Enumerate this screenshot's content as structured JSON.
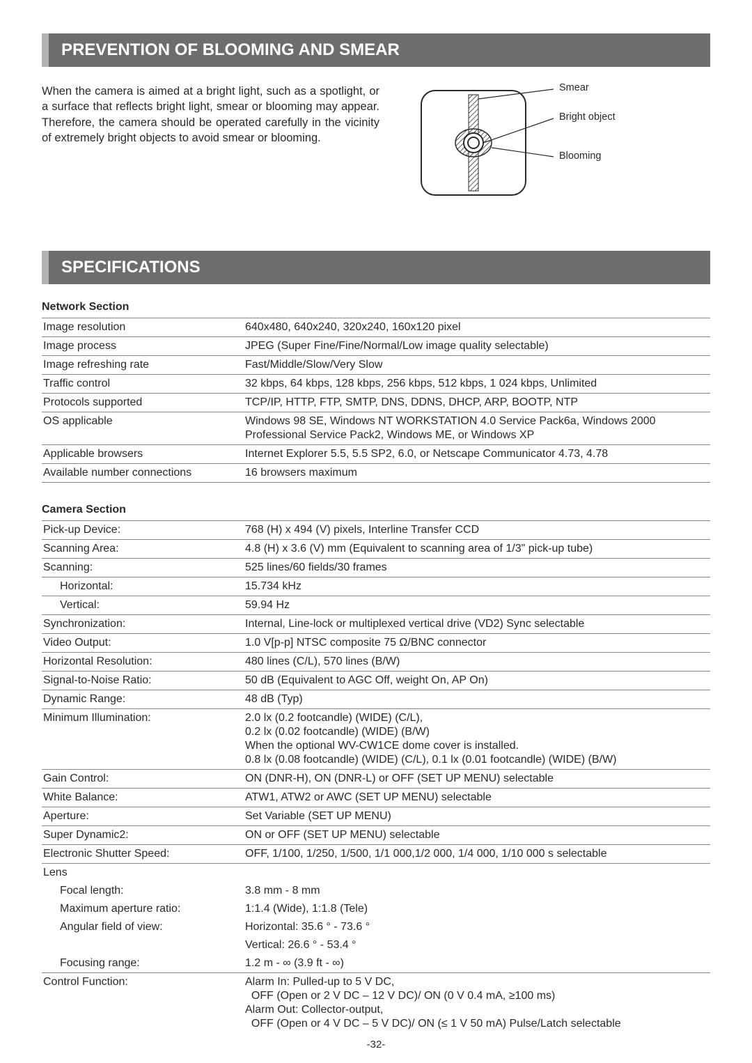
{
  "banner1": "PREVENTION OF BLOOMING AND SMEAR",
  "blooming_paragraph": "When the camera is aimed at a bright light, such as a spotlight, or a surface that reflects bright light, smear or blooming may appear. Therefore, the camera should be operated carefully in the vicinity of extremely bright objects to avoid smear or blooming.",
  "diagram": {
    "label_smear": "Smear",
    "label_bright": "Bright object",
    "label_blooming": "Blooming",
    "colors": {
      "frame": "#2a2a2a",
      "fill": "#ffffff",
      "hatch": "#5a5a5a"
    }
  },
  "banner2": "SPECIFICATIONS",
  "network_header": "Network Section",
  "network_rows": [
    {
      "label": "Image resolution",
      "value": "640x480, 640x240, 320x240, 160x120 pixel"
    },
    {
      "label": "Image process",
      "value": "JPEG (Super Fine/Fine/Normal/Low image quality selectable)"
    },
    {
      "label": "Image refreshing rate",
      "value": "Fast/Middle/Slow/Very Slow"
    },
    {
      "label": "Traffic control",
      "value": "32 kbps, 64 kbps, 128 kbps, 256 kbps, 512 kbps, 1 024 kbps, Unlimited"
    },
    {
      "label": "Protocols supported",
      "value": "TCP/IP, HTTP, FTP, SMTP, DNS, DDNS, DHCP, ARP, BOOTP, NTP"
    },
    {
      "label": "OS applicable",
      "value": "Windows 98 SE, Windows NT WORKSTATION 4.0 Service Pack6a, Windows 2000 Professional Service Pack2, Windows ME, or Windows XP"
    },
    {
      "label": "Applicable browsers",
      "value": "Internet Explorer 5.5, 5.5 SP2, 6.0, or Netscape Communicator 4.73, 4.78"
    },
    {
      "label": "Available number connections",
      "value": "16 browsers maximum"
    }
  ],
  "camera_header": "Camera Section",
  "camera_rows": [
    {
      "label": "Pick-up Device:",
      "value": "768 (H) x 494 (V) pixels, Interline Transfer CCD"
    },
    {
      "label": "Scanning Area:",
      "value": "4.8 (H) x 3.6 (V) mm (Equivalent to scanning area of 1/3\" pick-up tube)"
    },
    {
      "label": "Scanning:",
      "value": "525 lines/60 fields/30 frames"
    },
    {
      "label": "Horizontal:",
      "value": "15.734 kHz",
      "indent": true,
      "notop": true
    },
    {
      "label": "Vertical:",
      "value": "59.94 Hz",
      "indent": true
    },
    {
      "label": "Synchronization:",
      "value": "Internal, Line-lock or multiplexed vertical drive (VD2) Sync selectable"
    },
    {
      "label": "Video Output:",
      "value": "1.0 V[p-p] NTSC composite 75 Ω/BNC connector"
    },
    {
      "label": "Horizontal Resolution:",
      "value": "480 lines (C/L), 570 lines (B/W)"
    },
    {
      "label": "Signal-to-Noise Ratio:",
      "value": "50 dB (Equivalent to AGC Off, weight On, AP On)"
    },
    {
      "label": "Dynamic Range:",
      "value": "48 dB (Typ)"
    },
    {
      "label": "Minimum Illumination:",
      "value": "2.0 lx (0.2 footcandle) (WIDE) (C/L),\n0.2 lx (0.02 footcandle) (WIDE) (B/W)\nWhen the optional WV-CW1CE dome cover is installed.\n0.8 lx (0.08 footcandle) (WIDE) (C/L), 0.1 lx (0.01 footcandle) (WIDE) (B/W)"
    },
    {
      "label": "Gain Control:",
      "value": "ON (DNR-H), ON (DNR-L) or OFF (SET UP MENU) selectable"
    },
    {
      "label": "White Balance:",
      "value": "ATW1, ATW2 or AWC (SET UP MENU) selectable"
    },
    {
      "label": "Aperture:",
      "value": "Set Variable (SET UP MENU)"
    },
    {
      "label": "Super Dynamic2:",
      "value": "ON or OFF (SET UP MENU) selectable"
    },
    {
      "label": "Electronic Shutter Speed:",
      "value": "OFF, 1/100, 1/250, 1/500, 1/1 000,1/2 000, 1/4 000, 1/10 000 s selectable"
    }
  ],
  "lens_header": "Lens",
  "lens_rows": [
    {
      "label": "Focal length:",
      "value": "3.8 mm - 8 mm"
    },
    {
      "label": "Maximum aperture ratio:",
      "value": "1:1.4 (Wide), 1:1.8 (Tele)"
    },
    {
      "label": "Angular field of view:",
      "value": "Horizontal: 35.6 ° - 73.6 °"
    },
    {
      "label": "",
      "value": "Vertical: 26.6 ° - 53.4 °"
    },
    {
      "label": "Focusing range:",
      "value": "1.2 m - ∞ (3.9 ft - ∞)"
    }
  ],
  "control_label": "Control Function:",
  "control_value": "Alarm In: Pulled-up to 5 V DC,\n  OFF (Open or 2 V DC – 12 V DC)/ ON (0 V 0.4 mA, ≥100 ms)\nAlarm Out: Collector-output,\n  OFF (Open or 4 V DC – 5 V DC)/ ON (≤ 1 V 50 mA) Pulse/Latch selectable",
  "page_number": "-32-"
}
